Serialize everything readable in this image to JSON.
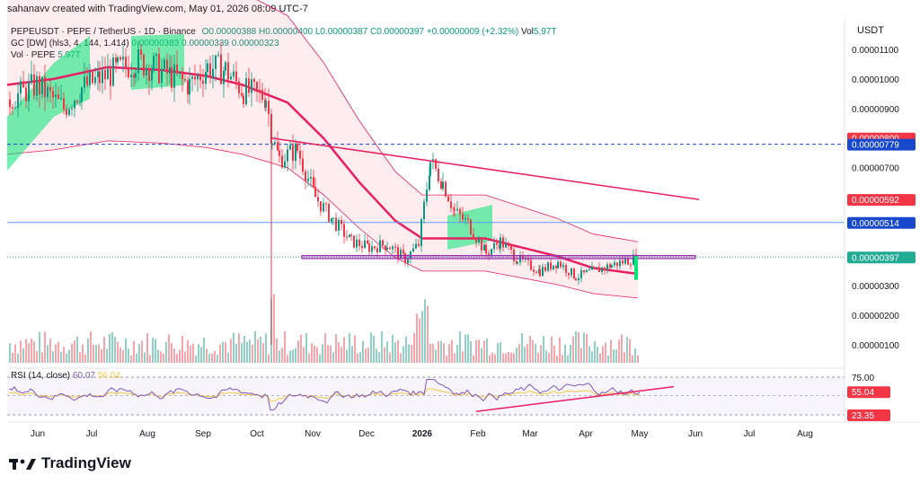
{
  "header": {
    "creator_line": "sahanavv created with TradingView.com, May 01, 2026 08:09 UTC-7"
  },
  "legend": {
    "symbol": "PEPEUSDT · PEPE / TetherUS · 1D · Binance",
    "open": "O0.00000388",
    "high": "H0.00000400",
    "low": "L0.00000387",
    "close": "C0.00000397",
    "change": "+0.00000009 (+2.32%)",
    "vol": "Vol",
    "vol_value": "5.97T",
    "gc_label": "GC [DW] (hls3, 4, 144, 1.414)",
    "gc_values": "0.00000383  0.00000339  0.00000323",
    "vol_label": "Vol · PEPE",
    "vol_label_value": "5.97T"
  },
  "price_axis": {
    "currency": "USDT",
    "ticks": [
      "0.00001100",
      "0.00001000",
      "0.00000900",
      "0.00000700",
      "0.00000300",
      "0.00000200",
      "0.00000100"
    ],
    "badges": [
      {
        "label": "0.00000800",
        "color": "#f23645"
      },
      {
        "label": "0.00000779",
        "color": "#1848cc"
      },
      {
        "label": "0.00000592",
        "color": "#f23645"
      },
      {
        "label": "0.00000514",
        "color": "#1848cc"
      },
      {
        "label": "0.00000397",
        "color": "#22ab94"
      }
    ]
  },
  "rsi": {
    "label": "RSI (14, close)",
    "value1": "60.07",
    "value2": "56.04",
    "upper": "75.00",
    "badge_value": "55.04",
    "badge_value_low": "23.35"
  },
  "time_axis": [
    "Jun",
    "Jul",
    "Aug",
    "Sep",
    "Oct",
    "Nov",
    "Dec",
    "2026",
    "Feb",
    "Mar",
    "Apr",
    "May",
    "Jun",
    "Jul",
    "Aug"
  ],
  "footer": {
    "brand": "TradingView"
  },
  "chart_data": {
    "type": "candlestick",
    "title": "PEPEUSDT · PEPE / TetherUS · 1D · Binance",
    "ylabel": "USDT",
    "ylim": [
      5e-07,
      1.15e-05
    ],
    "x_categories": [
      "Jun",
      "Jul",
      "Aug",
      "Sep",
      "Oct",
      "Nov",
      "Dec",
      "2026",
      "Feb",
      "Mar",
      "Apr",
      "May",
      "Jun",
      "Jul",
      "Aug"
    ],
    "approx_close_path": [
      {
        "x": "Jun",
        "y": 9.3e-06
      },
      {
        "x": "Jul",
        "y": 1e-05
      },
      {
        "x": "Aug",
        "y": 1.02e-05
      },
      {
        "x": "Sep",
        "y": 1e-05
      },
      {
        "x": "Oct",
        "y": 9.8e-06
      },
      {
        "x": "Oct",
        "y": 7.9e-06
      },
      {
        "x": "Nov",
        "y": 5.8e-06
      },
      {
        "x": "Dec",
        "y": 4e-06
      },
      {
        "x": "2026",
        "y": 7.2e-06
      },
      {
        "x": "Feb",
        "y": 4.2e-06
      },
      {
        "x": "Mar",
        "y": 3.5e-06
      },
      {
        "x": "Apr",
        "y": 3.4e-06
      },
      {
        "x": "May",
        "y": 3.97e-06
      }
    ],
    "horizontal_levels": [
      7.79e-06,
      5.14e-06,
      3.97e-06
    ],
    "resistance_trendline": [
      {
        "x": "Oct",
        "y": 8e-06
      },
      {
        "x": "Jun",
        "y": 5.92e-06
      }
    ],
    "support_zone": [
      3.92e-06,
      4.02e-06
    ],
    "rsi": {
      "upper": 75.0,
      "current": 55.04,
      "low": 23.35,
      "values": [
        60.07,
        56.04
      ]
    }
  }
}
